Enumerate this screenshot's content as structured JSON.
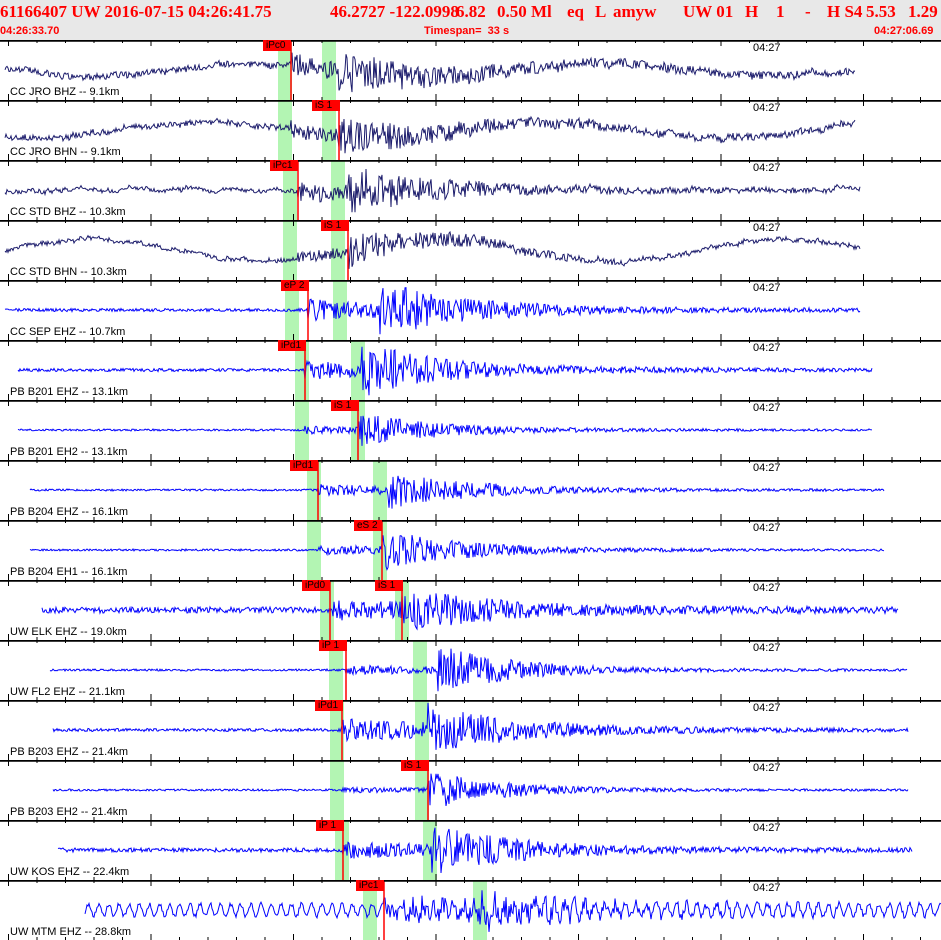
{
  "header": {
    "event_id": "61166407 UW 2016-07-15 04:26:41.75",
    "location": "46.2727 -122.0998",
    "depth": "6.82",
    "magnitude": "0.50 Ml",
    "type": "eq",
    "flag": "L",
    "source": "amyw",
    "network_loc": "UW 01",
    "f1": "H",
    "f2": "1",
    "f3": "-",
    "f4": "H S4",
    "v1": "5.53",
    "v2": "1.29",
    "start_time": "04:26:33.70",
    "timespan": "Timespan=  33 s",
    "end_time": "04:27:06.69"
  },
  "colors": {
    "header_text": "#ff0000",
    "pick": "#ff0000",
    "window": "#b3f5b3",
    "trace_bb": "#1c1c6c",
    "trace_sp": "#0000ff"
  },
  "minute_label": "04:27",
  "channels": [
    {
      "label": "CC JRO BHZ -- 9.1km",
      "picks": [
        "iPc0"
      ]
    },
    {
      "label": "CC JRO BHN -- 9.1km",
      "picks": [
        "iS 1"
      ]
    },
    {
      "label": "CC STD BHZ -- 10.3km",
      "picks": [
        "iPc1"
      ]
    },
    {
      "label": "CC STD BHN -- 10.3km",
      "picks": [
        "iS 1"
      ]
    },
    {
      "label": "CC SEP EHZ -- 10.7km",
      "picks": [
        "eP 2"
      ]
    },
    {
      "label": "PB B201 EHZ -- 13.1km",
      "picks": [
        "iPd1"
      ]
    },
    {
      "label": "PB B201 EH2 -- 13.1km",
      "picks": [
        "iS 1"
      ]
    },
    {
      "label": "PB B204 EHZ -- 16.1km",
      "picks": [
        "iPd1"
      ]
    },
    {
      "label": "PB B204 EH1 -- 16.1km",
      "picks": [
        "eS 2"
      ]
    },
    {
      "label": "UW ELK EHZ -- 19.0km",
      "picks": [
        "iPd0",
        "iS 1"
      ]
    },
    {
      "label": "UW FL2 EHZ -- 21.1km",
      "picks": [
        "iP 1"
      ]
    },
    {
      "label": "PB B203 EHZ -- 21.4km",
      "picks": [
        "iPd1"
      ]
    },
    {
      "label": "PB B203 EH2 -- 21.4km",
      "picks": [
        "iS 1"
      ]
    },
    {
      "label": "UW KOS EHZ -- 22.4km",
      "picks": [
        "iP 1"
      ]
    },
    {
      "label": "UW MTM EHZ -- 28.8km",
      "picks": [
        "iPc1"
      ]
    }
  ]
}
